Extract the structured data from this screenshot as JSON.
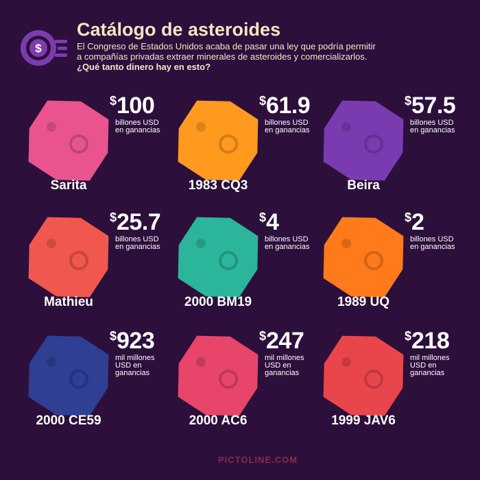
{
  "header": {
    "title": "Catálogo de asteroides",
    "description": [
      "El Congreso de Estados Unidos acaba de pasar una ley que podría permitir",
      "a compañías privadas extraer minerales de asteroides y comercializarlos."
    ],
    "question": "¿Qué tanto dinero hay en esto?"
  },
  "asteroids": [
    {
      "name": "Sarita",
      "currency": "$",
      "amount": "100",
      "unit": [
        "billones USD",
        "en ganancias"
      ]
    },
    {
      "name": "1983 CQ3",
      "currency": "$",
      "amount": "61.9",
      "unit": [
        "billones USD",
        "en ganancias"
      ]
    },
    {
      "name": "Beira",
      "currency": "$",
      "amount": "57.5",
      "unit": [
        "billones USD",
        "en ganancias"
      ]
    },
    {
      "name": "Mathieu",
      "currency": "$",
      "amount": "25.7",
      "unit": [
        "billones USD",
        "en ganancias"
      ]
    },
    {
      "name": "2000 BM19",
      "currency": "$",
      "amount": "4",
      "unit": [
        "billones USD",
        "en ganancias"
      ]
    },
    {
      "name": "1989 UQ",
      "currency": "$",
      "amount": "2",
      "unit": [
        "billones USD",
        "en ganancias"
      ]
    },
    {
      "name": "2000 CE59",
      "currency": "$",
      "amount": "923",
      "unit": [
        "mil millones",
        "USD en",
        "ganancias"
      ]
    },
    {
      "name": "2000 AC6",
      "currency": "$",
      "amount": "247",
      "unit": [
        "mil millones",
        "USD en",
        "ganancias"
      ]
    },
    {
      "name": "1999 JAV6",
      "currency": "$",
      "amount": "218",
      "unit": [
        "mil millones",
        "USD en",
        "ganancias"
      ]
    }
  ],
  "footer": {
    "brand": "PICTOLINE.COM"
  }
}
